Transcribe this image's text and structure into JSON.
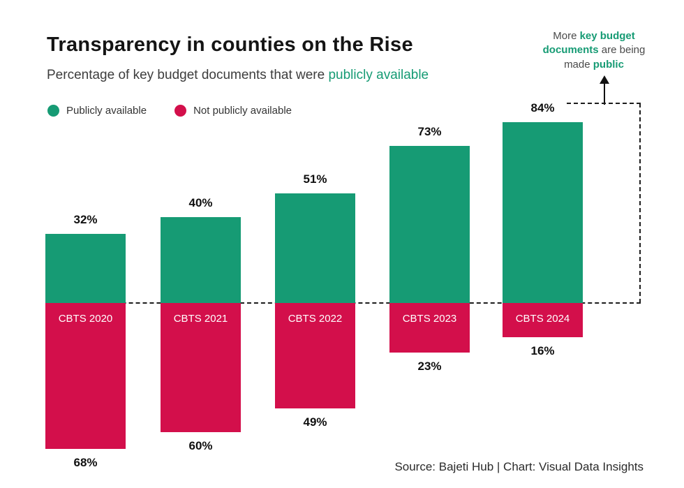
{
  "title": "Transparency in counties on the Rise",
  "subtitle": {
    "prefix": "Percentage of key budget documents that were ",
    "highlight": "publicly available"
  },
  "legend": [
    {
      "label": "Publicly available",
      "color": "#169b74"
    },
    {
      "label": "Not publicly available",
      "color": "#d30f4b"
    }
  ],
  "annotation": {
    "part1": "More ",
    "bold1": "key budget documents",
    "part2": " are being made ",
    "bold2": "public"
  },
  "source": "Source: Bajeti Hub | Chart: Visual Data Insights",
  "chart_data": {
    "type": "bar",
    "orientation": "diverging-vertical",
    "categories": [
      "CBTS 2020",
      "CBTS 2021",
      "CBTS 2022",
      "CBTS 2023",
      "CBTS 2024"
    ],
    "series": [
      {
        "name": "Publicly available",
        "values": [
          32,
          40,
          51,
          73,
          84
        ],
        "color": "#169b74",
        "direction": "up"
      },
      {
        "name": "Not publicly available",
        "values": [
          68,
          60,
          49,
          23,
          16
        ],
        "color": "#d30f4b",
        "direction": "down"
      }
    ],
    "value_suffix": "%",
    "title": "Transparency in counties on the Rise",
    "xlabel": "",
    "ylabel": "",
    "baseline": "dotted zero line between the two series",
    "legend_position": "top-left",
    "grid": false
  }
}
